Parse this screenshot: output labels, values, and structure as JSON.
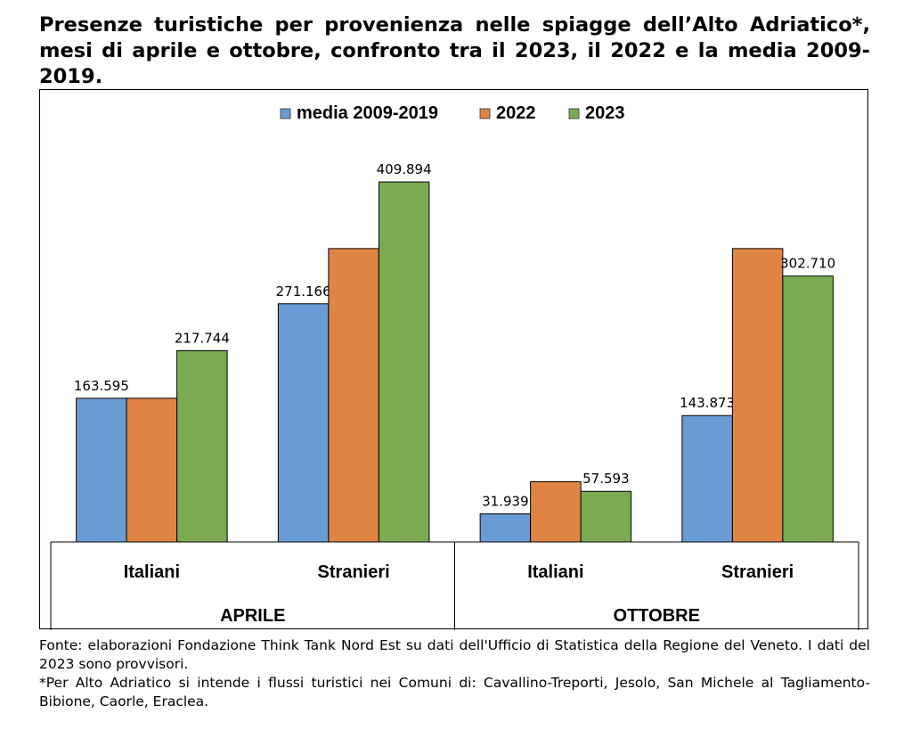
{
  "title": "Presenze turistiche per provenienza nelle spiagge dell’Alto Adriatico*, mesi di aprile e ottobre, confronto tra il 2023, il 2022 e la media 2009-2019.",
  "colors": {
    "media": "#6b9bd4",
    "y2022": "#e08444",
    "y2023": "#7aab53"
  },
  "chart_data": {
    "type": "bar",
    "groups": [
      {
        "label": "APRILE",
        "categories": [
          "Italiani",
          "Stranieri"
        ]
      },
      {
        "label": "OTTOBRE",
        "categories": [
          "Italiani",
          "Stranieri"
        ]
      }
    ],
    "categories": [
      "Italiani",
      "Stranieri",
      "Italiani",
      "Stranieri"
    ],
    "series": [
      {
        "name": "media 2009-2019",
        "values": [
          163595,
          271166,
          31939,
          143873
        ],
        "labels": [
          "163.595",
          "271.166",
          "31.939",
          "143.873"
        ]
      },
      {
        "name": "2022",
        "values": [
          163595,
          334000,
          68500,
          334000
        ],
        "labels": [
          "",
          "",
          "",
          ""
        ]
      },
      {
        "name": "2023",
        "values": [
          217744,
          409894,
          57593,
          302710
        ],
        "labels": [
          "217.744",
          "409.894",
          "57.593",
          "302.710"
        ]
      }
    ],
    "ylim": [
      0,
      480000
    ],
    "legend": "top-center",
    "grid": false
  },
  "footer": {
    "source": "Fonte: elaborazioni Fondazione Think Tank Nord Est su dati dell'Ufficio di Statistica della Regione del Veneto. I dati del 2023 sono provvisori.",
    "note": "*Per Alto Adriatico si intende i flussi turistici nei Comuni di: Cavallino-Treporti, Jesolo, San Michele al Tagliamento-Bibione, Caorle, Eraclea."
  }
}
